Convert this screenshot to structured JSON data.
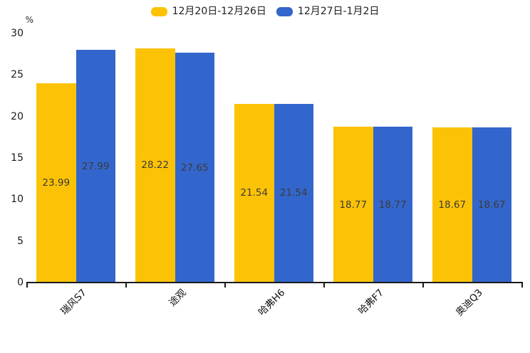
{
  "chart_data": {
    "type": "bar",
    "title": "",
    "categories": [
      "瑞风S7",
      "途观",
      "哈弗H6",
      "哈弗F7",
      "奥迪Q3"
    ],
    "series": [
      {
        "name": "12月20日-12月26日",
        "color": "#FCC306",
        "values": [
          23.99,
          28.22,
          21.54,
          18.77,
          18.67
        ]
      },
      {
        "name": "12月27日-1月2日",
        "color": "#3366CC",
        "values": [
          27.99,
          27.65,
          21.54,
          18.77,
          18.67
        ]
      }
    ],
    "value_labels": [
      [
        "23.99",
        "28.22",
        "21.54",
        "18.77",
        "18.67"
      ],
      [
        "27.99",
        "27.65",
        "21.54",
        "18.77",
        "18.67"
      ]
    ],
    "ylabel": "%",
    "ylim": [
      0,
      30
    ],
    "yticks": [
      0,
      5,
      10,
      15,
      20,
      25,
      30
    ],
    "grid": false,
    "legend_position": "top"
  },
  "colors": {
    "axis": "#1a1a1a",
    "tick_text": "#1a1a1a",
    "value_text": "#3b3b3b",
    "background": "#ffffff"
  }
}
